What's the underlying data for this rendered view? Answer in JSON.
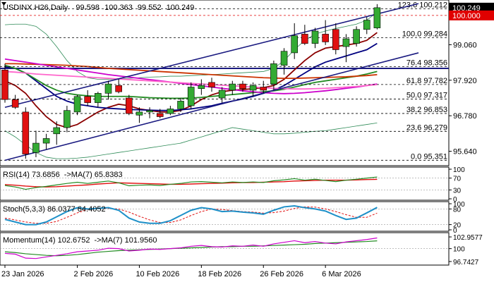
{
  "chart_data": {
    "type": "candlestick",
    "instrument": "USDINX.H26",
    "timeframe": "Daily",
    "header_values": [
      "99.598",
      "100.363",
      "99.552",
      "100.249"
    ],
    "ylim": [
      95.2,
      100.45
    ],
    "price_ticks": [
      "99.060",
      "97.920",
      "96.780",
      "95.640"
    ],
    "price_tick_values": [
      99.06,
      97.92,
      96.78,
      95.64
    ],
    "last_price": {
      "text": "100.249",
      "value": 100.249
    },
    "level_100": {
      "text": "100.000",
      "value": 100.0
    },
    "x_labels": [
      "23 Jan 2026",
      "2 Feb 2026",
      "10 Feb 2026",
      "18 Feb 2026",
      "26 Feb 2026",
      "6 Mar 2026"
    ],
    "x_label_index": [
      0,
      7,
      13,
      19,
      25,
      31
    ],
    "candles": [
      {
        "o": 98.25,
        "h": 98.45,
        "l": 97.2,
        "c": 97.3
      },
      {
        "o": 97.3,
        "h": 97.45,
        "l": 97.0,
        "c": 97.05
      },
      {
        "o": 96.9,
        "h": 97.05,
        "l": 95.4,
        "c": 95.55
      },
      {
        "o": 95.6,
        "h": 96.3,
        "l": 95.45,
        "c": 95.9
      },
      {
        "o": 95.9,
        "h": 96.2,
        "l": 95.7,
        "c": 96.05
      },
      {
        "o": 96.2,
        "h": 96.6,
        "l": 95.85,
        "c": 96.4
      },
      {
        "o": 96.4,
        "h": 97.1,
        "l": 96.25,
        "c": 96.95
      },
      {
        "o": 96.9,
        "h": 97.45,
        "l": 96.8,
        "c": 97.4
      },
      {
        "o": 97.4,
        "h": 97.6,
        "l": 97.1,
        "c": 97.2
      },
      {
        "o": 97.2,
        "h": 97.55,
        "l": 97.05,
        "c": 97.5
      },
      {
        "o": 97.5,
        "h": 97.9,
        "l": 97.3,
        "c": 97.8
      },
      {
        "o": 97.75,
        "h": 97.95,
        "l": 97.5,
        "c": 97.55
      },
      {
        "o": 97.35,
        "h": 97.45,
        "l": 96.8,
        "c": 96.85
      },
      {
        "o": 96.8,
        "h": 97.05,
        "l": 96.55,
        "c": 96.9
      },
      {
        "o": 96.9,
        "h": 97.05,
        "l": 96.7,
        "c": 96.95
      },
      {
        "o": 96.85,
        "h": 97.0,
        "l": 96.7,
        "c": 96.75
      },
      {
        "o": 96.85,
        "h": 97.1,
        "l": 96.8,
        "c": 97.0
      },
      {
        "o": 97.0,
        "h": 97.35,
        "l": 96.9,
        "c": 97.25
      },
      {
        "o": 97.1,
        "h": 97.85,
        "l": 97.0,
        "c": 97.7
      },
      {
        "o": 97.65,
        "h": 97.95,
        "l": 97.45,
        "c": 97.75
      },
      {
        "o": 97.85,
        "h": 98.0,
        "l": 97.55,
        "c": 97.7
      },
      {
        "o": 97.35,
        "h": 97.7,
        "l": 97.2,
        "c": 97.6
      },
      {
        "o": 97.6,
        "h": 97.9,
        "l": 97.45,
        "c": 97.8
      },
      {
        "o": 97.8,
        "h": 97.9,
        "l": 97.55,
        "c": 97.65
      },
      {
        "o": 97.6,
        "h": 97.85,
        "l": 97.4,
        "c": 97.75
      },
      {
        "o": 97.7,
        "h": 97.9,
        "l": 97.5,
        "c": 97.6
      },
      {
        "o": 97.8,
        "h": 98.55,
        "l": 97.6,
        "c": 98.45
      },
      {
        "o": 98.4,
        "h": 98.95,
        "l": 98.1,
        "c": 98.85
      },
      {
        "o": 98.8,
        "h": 99.75,
        "l": 98.6,
        "c": 99.35
      },
      {
        "o": 99.4,
        "h": 99.7,
        "l": 99.05,
        "c": 99.1
      },
      {
        "o": 99.1,
        "h": 99.6,
        "l": 98.95,
        "c": 99.5
      },
      {
        "o": 99.4,
        "h": 99.85,
        "l": 99.05,
        "c": 99.15
      },
      {
        "o": 99.55,
        "h": 99.75,
        "l": 98.75,
        "c": 98.9
      },
      {
        "o": 99.0,
        "h": 99.4,
        "l": 98.5,
        "c": 99.25
      },
      {
        "o": 99.1,
        "h": 99.65,
        "l": 99.0,
        "c": 99.55
      },
      {
        "o": 99.55,
        "h": 99.95,
        "l": 99.4,
        "c": 99.85
      },
      {
        "o": 99.598,
        "h": 100.363,
        "l": 99.552,
        "c": 100.249
      }
    ],
    "fib_levels": [
      {
        "text": "123.6 100.212",
        "value": 100.212
      },
      {
        "text": "100.0 99.284",
        "value": 99.284
      },
      {
        "text": "76.4 98.356",
        "value": 98.356
      },
      {
        "text": "61.8 97.782",
        "value": 97.782
      },
      {
        "text": "50.0 97.317",
        "value": 97.317
      },
      {
        "text": "38.2 96.853",
        "value": 96.853
      },
      {
        "text": "23.6 96.279",
        "value": 96.279
      },
      {
        "text": "0.0 95.351",
        "value": 95.351
      }
    ],
    "channel_lines": [
      {
        "from": [
          0,
          97.05
        ],
        "to": [
          40,
          100.38
        ]
      },
      {
        "from": [
          0,
          95.35
        ],
        "to": [
          40,
          98.8
        ]
      }
    ],
    "horizontal_line": 98.3,
    "moving_averages": [
      {
        "color": "#8b0000",
        "values": [
          97.9,
          97.75,
          97.5,
          97.1,
          96.75,
          96.5,
          96.4,
          96.5,
          96.7,
          96.9,
          97.05,
          97.15,
          97.1,
          97.0,
          96.95,
          96.9,
          96.9,
          96.95,
          97.1,
          97.3,
          97.45,
          97.55,
          97.6,
          97.62,
          97.65,
          97.68,
          97.75,
          97.95,
          98.25,
          98.55,
          98.8,
          98.95,
          99.0,
          99.05,
          99.1,
          99.2,
          99.45
        ]
      },
      {
        "color": "#000080",
        "values": [
          98.35,
          98.3,
          98.15,
          97.9,
          97.65,
          97.4,
          97.25,
          97.15,
          97.1,
          97.05,
          97.02,
          97.0,
          96.98,
          96.97,
          96.96,
          96.95,
          96.95,
          96.97,
          97.0,
          97.05,
          97.1,
          97.18,
          97.25,
          97.32,
          97.4,
          97.5,
          97.6,
          97.75,
          97.95,
          98.15,
          98.35,
          98.5,
          98.6,
          98.7,
          98.8,
          98.9,
          99.1
        ]
      },
      {
        "color": "#228b22",
        "values": [
          98.4,
          98.3,
          98.15,
          97.95,
          97.75,
          97.6,
          97.5,
          97.45,
          97.42,
          97.4,
          97.4,
          97.4,
          97.4,
          97.38,
          97.36,
          97.35,
          97.34,
          97.34,
          97.35,
          97.37,
          97.4,
          97.43,
          97.46,
          97.49,
          97.52,
          97.55,
          97.58,
          97.63,
          97.7,
          97.78,
          97.85,
          97.9,
          97.95,
          98.0,
          98.05,
          98.12,
          98.2
        ]
      },
      {
        "color": "#cc3300",
        "values": [
          98.45,
          98.45,
          98.44,
          98.43,
          98.42,
          98.41,
          98.4,
          98.38,
          98.36,
          98.33,
          98.3,
          98.28,
          98.26,
          98.24,
          98.22,
          98.2,
          98.18,
          98.16,
          98.14,
          98.12,
          98.1,
          98.08,
          98.06,
          98.04,
          98.02,
          98.0,
          97.99,
          97.98,
          97.98,
          97.99,
          98.0,
          98.01,
          98.02,
          98.03,
          98.05,
          98.07,
          98.1
        ]
      },
      {
        "color": "#cc00cc",
        "values": [
          98.6,
          98.55,
          98.5,
          98.45,
          98.4,
          98.35,
          98.3,
          98.25,
          98.2,
          98.15,
          98.1,
          98.06,
          98.02,
          97.98,
          97.94,
          97.9,
          97.86,
          97.82,
          97.78,
          97.74,
          97.7,
          97.66,
          97.62,
          97.58,
          97.55,
          97.52,
          97.5,
          97.49,
          97.5,
          97.52,
          97.55,
          97.58,
          97.62,
          97.66,
          97.7,
          97.75,
          97.8
        ]
      },
      {
        "color": "#ff66cc",
        "values": [
          98.2,
          98.18,
          98.15,
          98.12,
          98.1,
          98.08,
          98.06,
          98.04,
          98.02,
          98.0,
          97.98,
          97.96,
          97.94,
          97.92,
          97.9,
          97.88,
          97.86,
          97.84,
          97.82,
          97.8,
          97.78,
          97.76,
          97.74,
          97.72,
          97.7,
          97.68,
          97.66,
          97.65,
          97.64,
          97.64,
          97.65,
          97.66,
          97.68,
          97.7,
          97.72,
          97.75,
          97.78
        ]
      }
    ],
    "bollinger": {
      "color": "#2e8b57",
      "upper": [
        99.7,
        99.72,
        99.72,
        99.65,
        99.4,
        99.0,
        98.55,
        98.2,
        98.0,
        97.95,
        97.95,
        97.96,
        97.98,
        98.0,
        98.02,
        98.03,
        98.05,
        98.05,
        98.07,
        98.08,
        98.1,
        98.12,
        98.14,
        98.16,
        98.18,
        98.2,
        98.3,
        98.55,
        98.9,
        99.2,
        99.4,
        99.5,
        99.58,
        99.65,
        99.72,
        99.85,
        100.1
      ],
      "lower": [
        96.3,
        96.1,
        95.85,
        95.6,
        95.45,
        95.4,
        95.4,
        95.42,
        95.45,
        95.5,
        95.55,
        95.6,
        95.65,
        95.7,
        95.75,
        95.8,
        95.85,
        95.9,
        96.0,
        96.1,
        96.2,
        96.3,
        96.4,
        96.35,
        96.3,
        96.25,
        96.2,
        96.2,
        96.22,
        96.25,
        96.28,
        96.3,
        96.35,
        96.4,
        96.45,
        96.5,
        96.55
      ]
    },
    "rsi": {
      "label": "RSI(14) 73.6856",
      "ma_label": "->MA(7) 65.8383",
      "ticks": [
        "100",
        "70",
        "30",
        "0"
      ],
      "tick_values": [
        100,
        70,
        30,
        0
      ],
      "values": [
        45,
        40,
        32,
        38,
        42,
        47,
        52,
        56,
        52,
        56,
        60,
        54,
        44,
        46,
        47,
        45,
        49,
        52,
        57,
        58,
        56,
        54,
        57,
        55,
        57,
        55,
        61,
        64,
        68,
        63,
        66,
        62,
        58,
        63,
        66,
        70,
        73.7
      ],
      "ma": [
        48,
        46,
        43,
        41,
        40,
        41,
        43,
        45,
        47,
        50,
        52,
        54,
        53,
        52,
        51,
        50,
        49,
        49,
        50,
        51,
        52,
        53,
        54,
        55,
        55,
        56,
        57,
        58,
        60,
        61,
        62,
        63,
        63,
        63,
        64,
        65,
        65.8
      ]
    },
    "stoch": {
      "label": "Stoch(5,3,3) 86.0377 64.4052",
      "ticks": [
        "100",
        "80",
        "20",
        "0"
      ],
      "tick_values": [
        100,
        80,
        20,
        0
      ],
      "k": [
        40,
        30,
        20,
        20,
        30,
        50,
        70,
        85,
        80,
        82,
        85,
        75,
        45,
        30,
        25,
        25,
        35,
        55,
        75,
        85,
        80,
        70,
        72,
        68,
        65,
        60,
        75,
        88,
        92,
        85,
        80,
        72,
        55,
        40,
        45,
        65,
        86
      ],
      "d": [
        45,
        38,
        30,
        25,
        25,
        32,
        48,
        65,
        78,
        82,
        82,
        80,
        68,
        52,
        38,
        28,
        28,
        38,
        55,
        70,
        80,
        78,
        74,
        70,
        68,
        64,
        66,
        72,
        82,
        88,
        87,
        80,
        70,
        58,
        48,
        48,
        64
      ]
    },
    "momentum": {
      "label": "Momentum(14) 102.6752",
      "ma_label": "->MA(7) 101.9560",
      "ticks": [
        "102.9577",
        "100",
        "96.7427"
      ],
      "tick_values": [
        102.9577,
        100,
        96.7427
      ],
      "values": [
        98.8,
        98.6,
        97.6,
        97.5,
        97.9,
        98.3,
        98.7,
        99.2,
        99.4,
        99.6,
        100.1,
        100.0,
        99.4,
        99.6,
        99.9,
        99.8,
        100.0,
        100.2,
        100.6,
        100.8,
        100.5,
        100.4,
        100.7,
        100.6,
        100.9,
        100.6,
        101.2,
        101.6,
        102.0,
        101.5,
        101.8,
        101.4,
        101.2,
        101.7,
        102.0,
        102.3,
        102.7
      ],
      "ma": [
        99.2,
        99.0,
        98.7,
        98.5,
        98.3,
        98.2,
        98.3,
        98.5,
        98.8,
        99.1,
        99.3,
        99.5,
        99.6,
        99.7,
        99.8,
        99.9,
        100.0,
        100.1,
        100.2,
        100.3,
        100.4,
        100.5,
        100.5,
        100.6,
        100.6,
        100.7,
        100.8,
        100.9,
        101.0,
        101.1,
        101.3,
        101.4,
        101.5,
        101.6,
        101.7,
        101.8,
        101.96
      ]
    }
  }
}
